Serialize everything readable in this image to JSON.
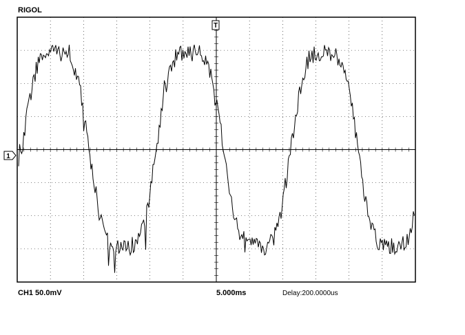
{
  "header": {
    "brand": "RIGOL"
  },
  "markers": {
    "trigger": "T",
    "channel": "1"
  },
  "status": {
    "channel_scale": "CH1 50.0mV",
    "timebase": "5.000ms",
    "delay": "Delay:200.0000us"
  }
}
